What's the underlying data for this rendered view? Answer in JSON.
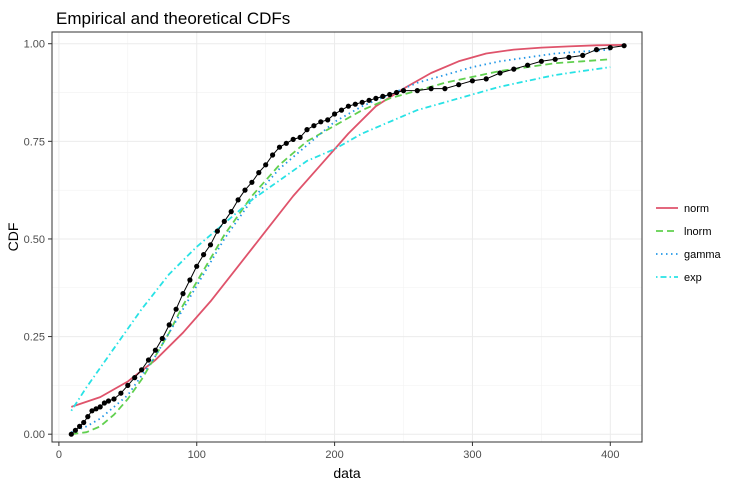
{
  "chart_data": {
    "type": "line",
    "title": "Empirical and theoretical CDFs",
    "xlabel": "data",
    "ylabel": "CDF",
    "xlim": [
      -5,
      423
    ],
    "ylim": [
      -0.02,
      1.03
    ],
    "x_ticks": [
      0,
      100,
      200,
      300,
      400
    ],
    "x_tick_labels": [
      "0",
      "100",
      "200",
      "300",
      "400"
    ],
    "y_ticks": [
      0,
      0.25,
      0.5,
      0.75,
      1
    ],
    "y_tick_labels": [
      "0.00",
      "0.25",
      "0.50",
      "0.75",
      "1.00"
    ],
    "grid": true,
    "legend_position": "right",
    "empirical": {
      "x": [
        9,
        12,
        15,
        18,
        21,
        24,
        27,
        30,
        33,
        36,
        40,
        45,
        50,
        55,
        60,
        65,
        70,
        75,
        80,
        85,
        90,
        95,
        100,
        105,
        110,
        115,
        120,
        125,
        130,
        135,
        140,
        145,
        150,
        155,
        160,
        165,
        170,
        175,
        180,
        185,
        190,
        195,
        200,
        205,
        210,
        215,
        220,
        225,
        230,
        235,
        240,
        245,
        250,
        260,
        270,
        280,
        290,
        300,
        310,
        320,
        330,
        340,
        350,
        360,
        370,
        380,
        390,
        400,
        410
      ],
      "y": [
        0.0,
        0.01,
        0.02,
        0.03,
        0.045,
        0.06,
        0.065,
        0.07,
        0.08,
        0.085,
        0.09,
        0.105,
        0.125,
        0.145,
        0.165,
        0.19,
        0.215,
        0.245,
        0.28,
        0.32,
        0.36,
        0.395,
        0.43,
        0.46,
        0.485,
        0.52,
        0.545,
        0.57,
        0.6,
        0.625,
        0.645,
        0.67,
        0.69,
        0.715,
        0.735,
        0.745,
        0.755,
        0.76,
        0.78,
        0.79,
        0.8,
        0.805,
        0.82,
        0.83,
        0.84,
        0.845,
        0.85,
        0.855,
        0.86,
        0.865,
        0.87,
        0.875,
        0.88,
        0.88,
        0.885,
        0.885,
        0.895,
        0.905,
        0.91,
        0.925,
        0.935,
        0.945,
        0.955,
        0.96,
        0.965,
        0.97,
        0.985,
        0.99,
        0.995
      ]
    },
    "series": [
      {
        "name": "norm",
        "color": "#DF536B",
        "dash": "solid",
        "x": [
          9,
          30,
          50,
          70,
          90,
          110,
          130,
          150,
          170,
          190,
          210,
          230,
          250,
          270,
          290,
          310,
          330,
          350,
          370,
          390,
          410
        ],
        "y": [
          0.07,
          0.095,
          0.135,
          0.19,
          0.26,
          0.34,
          0.43,
          0.52,
          0.61,
          0.69,
          0.77,
          0.84,
          0.885,
          0.925,
          0.955,
          0.975,
          0.985,
          0.99,
          0.993,
          0.996,
          0.997
        ]
      },
      {
        "name": "lnorm",
        "color": "#61D04F",
        "dash": "dashed",
        "x": [
          9,
          20,
          30,
          40,
          50,
          60,
          70,
          80,
          90,
          100,
          110,
          120,
          130,
          140,
          150,
          160,
          170,
          180,
          190,
          200,
          220,
          240,
          260,
          280,
          300,
          320,
          340,
          360,
          380,
          400
        ],
        "y": [
          0.0,
          0.005,
          0.02,
          0.05,
          0.09,
          0.14,
          0.2,
          0.26,
          0.33,
          0.39,
          0.45,
          0.51,
          0.56,
          0.61,
          0.65,
          0.69,
          0.72,
          0.75,
          0.77,
          0.79,
          0.83,
          0.86,
          0.88,
          0.9,
          0.915,
          0.93,
          0.94,
          0.95,
          0.955,
          0.96
        ]
      },
      {
        "name": "gamma",
        "color": "#2297E6",
        "dash": "dotted",
        "x": [
          9,
          20,
          30,
          40,
          50,
          60,
          70,
          80,
          90,
          100,
          110,
          120,
          130,
          140,
          150,
          160,
          170,
          180,
          190,
          200,
          220,
          240,
          260,
          280,
          300,
          320,
          340,
          360,
          380,
          400
        ],
        "y": [
          0.005,
          0.02,
          0.04,
          0.07,
          0.1,
          0.15,
          0.2,
          0.26,
          0.32,
          0.38,
          0.44,
          0.5,
          0.55,
          0.6,
          0.64,
          0.68,
          0.71,
          0.74,
          0.77,
          0.8,
          0.84,
          0.87,
          0.9,
          0.92,
          0.94,
          0.955,
          0.965,
          0.975,
          0.98,
          0.985
        ]
      },
      {
        "name": "exp",
        "color": "#28E2E5",
        "dash": "dotdash",
        "x": [
          9,
          20,
          40,
          60,
          80,
          100,
          120,
          140,
          160,
          180,
          200,
          220,
          240,
          260,
          280,
          300,
          320,
          340,
          360,
          380,
          400
        ],
        "y": [
          0.06,
          0.12,
          0.22,
          0.32,
          0.41,
          0.48,
          0.54,
          0.6,
          0.65,
          0.7,
          0.73,
          0.77,
          0.8,
          0.83,
          0.85,
          0.87,
          0.89,
          0.905,
          0.92,
          0.93,
          0.94
        ]
      }
    ]
  }
}
